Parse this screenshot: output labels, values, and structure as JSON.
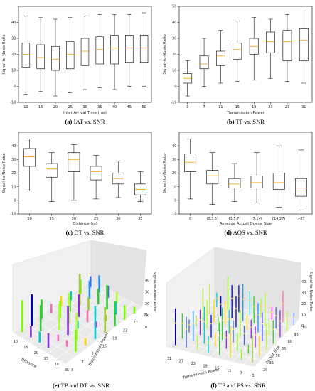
{
  "chart_data": [
    {
      "id": "a",
      "type": "box",
      "caption_tag": "(a)",
      "caption_text": "IAT vs. SNR",
      "xlabel": "Inter Arrival Time (ms)",
      "ylabel": "Signal-to-Noise Ratio",
      "ylim": [
        -10,
        50
      ],
      "yticks": [
        "-10",
        "0",
        "10",
        "20",
        "30",
        "40"
      ],
      "categories": [
        "10",
        "15",
        "20",
        "25",
        "30",
        "35",
        "40",
        "45",
        "50"
      ],
      "boxes": [
        {
          "min": -5,
          "q1": 12,
          "median": 20,
          "q3": 27,
          "max": 44
        },
        {
          "min": -3,
          "q1": 11,
          "median": 18,
          "q3": 26,
          "max": 43
        },
        {
          "min": -6,
          "q1": 10,
          "median": 17,
          "q3": 25,
          "max": 42
        },
        {
          "min": -4,
          "q1": 11,
          "median": 20,
          "q3": 28,
          "max": 43
        },
        {
          "min": -2,
          "q1": 13,
          "median": 22,
          "q3": 30,
          "max": 44
        },
        {
          "min": -1,
          "q1": 14,
          "median": 23,
          "q3": 31,
          "max": 45
        },
        {
          "min": -2,
          "q1": 14,
          "median": 24,
          "q3": 32,
          "max": 45
        },
        {
          "min": 0,
          "q1": 15,
          "median": 24,
          "q3": 32,
          "max": 45
        },
        {
          "min": 0,
          "q1": 15,
          "median": 24,
          "q3": 32,
          "max": 46
        }
      ]
    },
    {
      "id": "b",
      "type": "box",
      "caption_tag": "(b)",
      "caption_text": "TP vs. SNR",
      "xlabel": "Transmission Power",
      "ylabel": "Signal-to-Noise Ratio",
      "ylim": [
        -10,
        50
      ],
      "yticks": [
        "-10",
        "0",
        "10",
        "20",
        "30",
        "40",
        "50"
      ],
      "categories": [
        "3",
        "7",
        "11",
        "15",
        "19",
        "23",
        "27",
        "31"
      ],
      "boxes": [
        {
          "min": -6,
          "q1": 2,
          "median": 5,
          "q3": 8,
          "max": 16
        },
        {
          "min": 0,
          "q1": 11,
          "median": 14,
          "q3": 19,
          "max": 30
        },
        {
          "min": 2,
          "q1": 13,
          "median": 19,
          "q3": 22,
          "max": 35
        },
        {
          "min": 3,
          "q1": 17,
          "median": 23,
          "q3": 27,
          "max": 41
        },
        {
          "min": 4,
          "q1": 20,
          "median": 25,
          "q3": 30,
          "max": 43
        },
        {
          "min": 5,
          "q1": 21,
          "median": 28,
          "q3": 34,
          "max": 42
        },
        {
          "min": 3,
          "q1": 16,
          "median": 28,
          "q3": 35,
          "max": 45
        },
        {
          "min": 2,
          "q1": 16,
          "median": 29,
          "q3": 36,
          "max": 47
        }
      ]
    },
    {
      "id": "c",
      "type": "box",
      "caption_tag": "(c)",
      "caption_text": "DT vs. SNR",
      "xlabel": "Distance (m)",
      "ylabel": "Signal-to-Noise Ratio",
      "ylim": [
        -10,
        50
      ],
      "yticks": [
        "-10",
        "0",
        "10",
        "20",
        "30",
        "40"
      ],
      "categories": [
        "10",
        "15",
        "20",
        "25",
        "30",
        "35"
      ],
      "boxes": [
        {
          "min": 7,
          "q1": 25,
          "median": 32,
          "q3": 38,
          "max": 45
        },
        {
          "min": -1,
          "q1": 17,
          "median": 23,
          "q3": 27,
          "max": 35
        },
        {
          "min": 0,
          "q1": 21,
          "median": 30,
          "q3": 35,
          "max": 41
        },
        {
          "min": 1,
          "q1": 15,
          "median": 21,
          "q3": 25,
          "max": 33
        },
        {
          "min": 2,
          "q1": 12,
          "median": 16,
          "q3": 20,
          "max": 29
        },
        {
          "min": -1,
          "q1": 4,
          "median": 8,
          "q3": 12,
          "max": 21
        }
      ]
    },
    {
      "id": "d",
      "type": "box",
      "caption_tag": "(d)",
      "caption_text": "AQS vs. SNR",
      "xlabel": "Average Actual Queue Size",
      "ylabel": "Signal-to-Noise Ratio",
      "ylim": [
        -10,
        50
      ],
      "yticks": [
        "-10",
        "0",
        "10",
        "20",
        "30",
        "40"
      ],
      "categories": [
        "0",
        "(0,3.5)",
        "[3.5,7)",
        "[7,14)",
        "[14,27)",
        ">27"
      ],
      "boxes": [
        {
          "min": 1,
          "q1": 21,
          "median": 28,
          "q3": 34,
          "max": 45
        },
        {
          "min": -3,
          "q1": 12,
          "median": 18,
          "q3": 22,
          "max": 35
        },
        {
          "min": -1,
          "q1": 9,
          "median": 12,
          "q3": 16,
          "max": 27
        },
        {
          "min": -2,
          "q1": 9,
          "median": 13,
          "q3": 18,
          "max": 35
        },
        {
          "min": -5,
          "q1": 8,
          "median": 13,
          "q3": 20,
          "max": 40
        },
        {
          "min": -7,
          "q1": 3,
          "median": 9,
          "q3": 16,
          "max": 37
        }
      ]
    },
    {
      "id": "e",
      "type": "bar3d",
      "caption_tag": "(e)",
      "caption_text": "TP and DT vs. SNR",
      "xlabel": "Distance",
      "ylabel": "Transmission Power",
      "zlabel": "Signal-to-Noise Ratio",
      "xticks": [
        "10",
        "15",
        "20",
        "25",
        "30",
        "35"
      ],
      "yticks": [
        "3",
        "7",
        "11",
        "15",
        "19",
        "23",
        "27",
        "31"
      ],
      "zticks": [
        "0",
        "10",
        "20",
        "30",
        "40"
      ]
    },
    {
      "id": "f",
      "type": "bar3d",
      "caption_tag": "(f)",
      "caption_text": "TP and PS vs. SNR",
      "xlabel": "Transmission Power",
      "ylabel": "Packet Size",
      "zlabel": "Signal-to-Noise Ratio",
      "xticks": [
        "31",
        "27",
        "23",
        "19",
        "15",
        "11",
        "7",
        "3"
      ],
      "yticks": [
        "20",
        "35",
        "50",
        "65",
        "80",
        "95",
        "110"
      ],
      "zticks": [
        "0",
        "10",
        "20",
        "30",
        "40"
      ]
    }
  ]
}
